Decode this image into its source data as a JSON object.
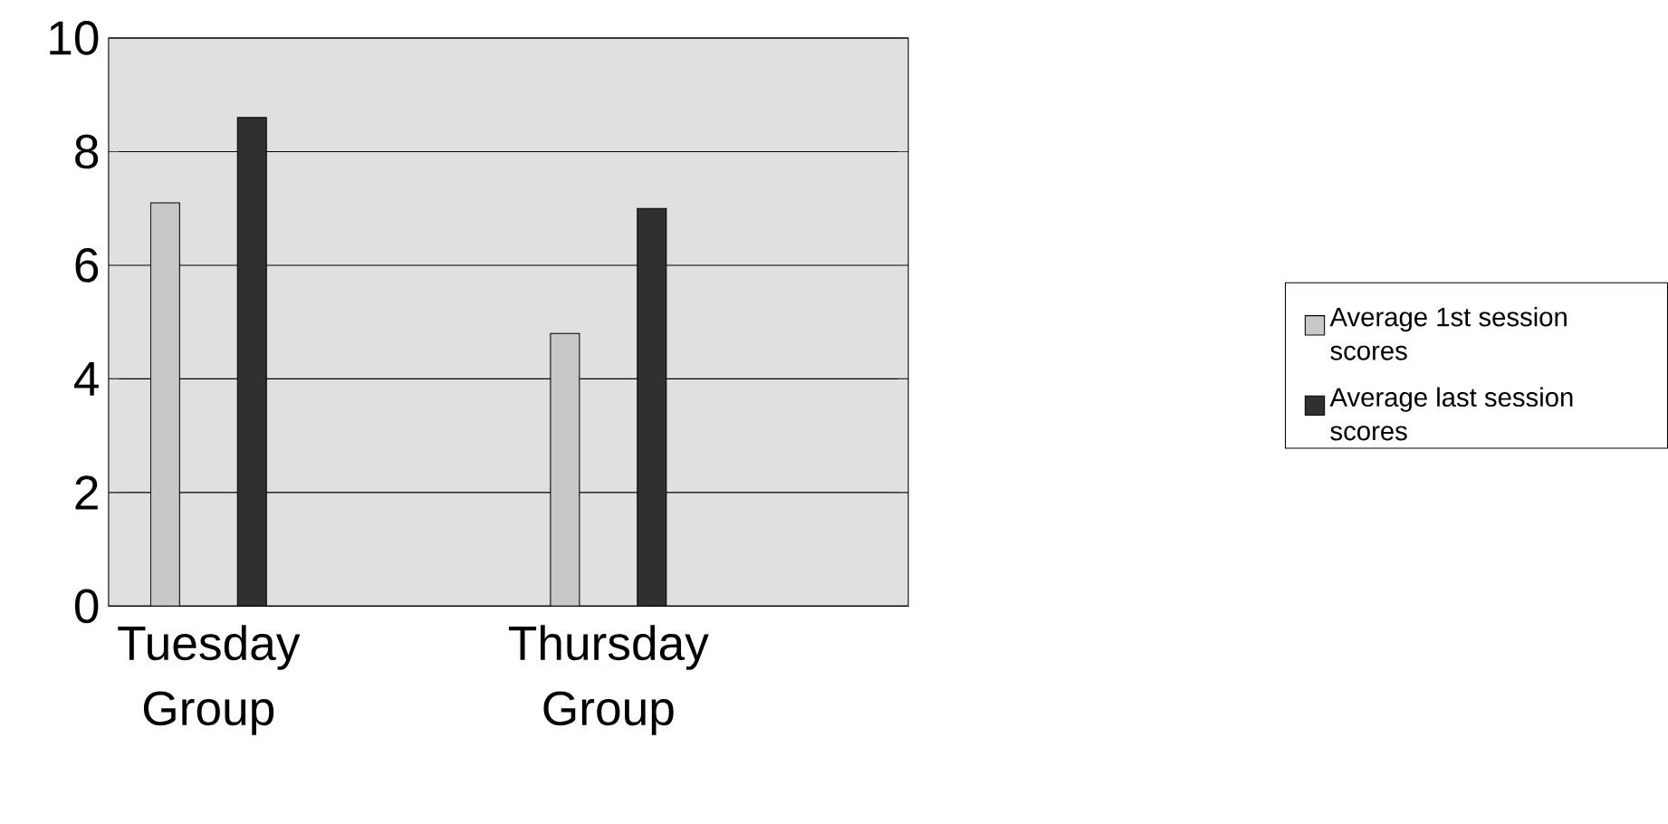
{
  "chart_data": {
    "type": "bar",
    "categories": [
      "Tuesday Group",
      null,
      "Thursday Group",
      null
    ],
    "series": [
      {
        "name": "Average 1st session scores",
        "color": "#c8c8c8",
        "values": [
          7.1,
          null,
          4.8,
          null
        ]
      },
      {
        "name": "Average last session scores",
        "color": "#303030",
        "values": [
          8.6,
          null,
          7.0,
          null
        ]
      }
    ],
    "ylim": [
      0,
      10
    ],
    "yticks": [
      0,
      2,
      4,
      6,
      8,
      10
    ],
    "grid": "y",
    "legend": "right"
  }
}
